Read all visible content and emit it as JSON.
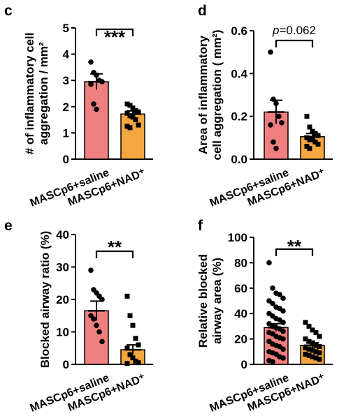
{
  "colors": {
    "saline_bar": "#f08080",
    "nad_bar": "#f4a640",
    "axis": "#000000"
  },
  "chart_data": [
    {
      "panel": "c",
      "type": "bar",
      "ylabel_lines": [
        "# of inflammatory cell",
        "aggregation / mm²"
      ],
      "yticks": [
        "0",
        "1",
        "2",
        "3",
        "4",
        "5"
      ],
      "ylim": [
        0,
        5
      ],
      "categories": [
        "MASCp6+saline",
        "MASCp6+NAD⁺"
      ],
      "values": [
        2.95,
        1.72
      ],
      "sem": [
        0.3,
        0.12
      ],
      "points": [
        [
          3.7,
          3.3,
          3.2,
          3.0,
          2.95,
          2.85,
          2.1,
          1.9
        ],
        [
          2.1,
          2.05,
          1.95,
          1.85,
          1.8,
          1.75,
          1.65,
          1.6,
          1.5,
          1.3,
          1.25,
          1.2
        ]
      ],
      "significance": "***"
    },
    {
      "panel": "d",
      "type": "bar",
      "ylabel_lines": [
        "Area of inflammatory",
        "cell aggregation ( mm²)"
      ],
      "yticks": [
        "0.0",
        "0.2",
        "0.4",
        "0.6"
      ],
      "ylim": [
        0,
        0.6
      ],
      "categories": [
        "MASCp6+saline",
        "MASCp6+NAD⁺"
      ],
      "values": [
        0.22,
        0.105
      ],
      "sem": [
        0.055,
        0.015
      ],
      "points": [
        [
          0.5,
          0.28,
          0.26,
          0.2,
          0.17,
          0.16,
          0.08,
          0.05
        ],
        [
          0.2,
          0.15,
          0.13,
          0.12,
          0.11,
          0.1,
          0.09,
          0.09,
          0.08,
          0.07,
          0.06,
          0.05
        ]
      ],
      "significance": "p=0.062"
    },
    {
      "panel": "e",
      "type": "bar",
      "ylabel_lines": [
        "Blocked airway ratio (%)"
      ],
      "yticks": [
        "0",
        "10",
        "20",
        "30",
        "40"
      ],
      "ylim": [
        0,
        40
      ],
      "categories": [
        "MASCp6+saline",
        "MASCp6+NAD⁺"
      ],
      "values": [
        16.5,
        4.5
      ],
      "sem": [
        3.0,
        1.5
      ],
      "points": [
        [
          29,
          23,
          22,
          21,
          20,
          15,
          14,
          12,
          10,
          7
        ],
        [
          21,
          15,
          12,
          8,
          6,
          5,
          3,
          2,
          1,
          0.5,
          0.3
        ]
      ],
      "significance": "**"
    },
    {
      "panel": "f",
      "type": "bar",
      "ylabel_lines": [
        "Relative blocked",
        "airway area (%)"
      ],
      "yticks": [
        "0",
        "20",
        "40",
        "60",
        "80",
        "100"
      ],
      "ylim": [
        0,
        100
      ],
      "categories": [
        "MASCp6+saline",
        "MASCp6+NAD⁺"
      ],
      "values": [
        29,
        15
      ],
      "sem": [
        3.0,
        2.0
      ],
      "points": [
        [
          80,
          60,
          56,
          55,
          52,
          50,
          48,
          45,
          44,
          42,
          40,
          38,
          36,
          35,
          33,
          32,
          30,
          29,
          28,
          26,
          25,
          24,
          22,
          21,
          20,
          18,
          16,
          15,
          14,
          12,
          10,
          9,
          8,
          6,
          5,
          3,
          2
        ],
        [
          33,
          30,
          27,
          25,
          22,
          20,
          18,
          17,
          15,
          14,
          13,
          12,
          11,
          10,
          9,
          8,
          7,
          6,
          5,
          4
        ]
      ],
      "significance": "**"
    }
  ]
}
